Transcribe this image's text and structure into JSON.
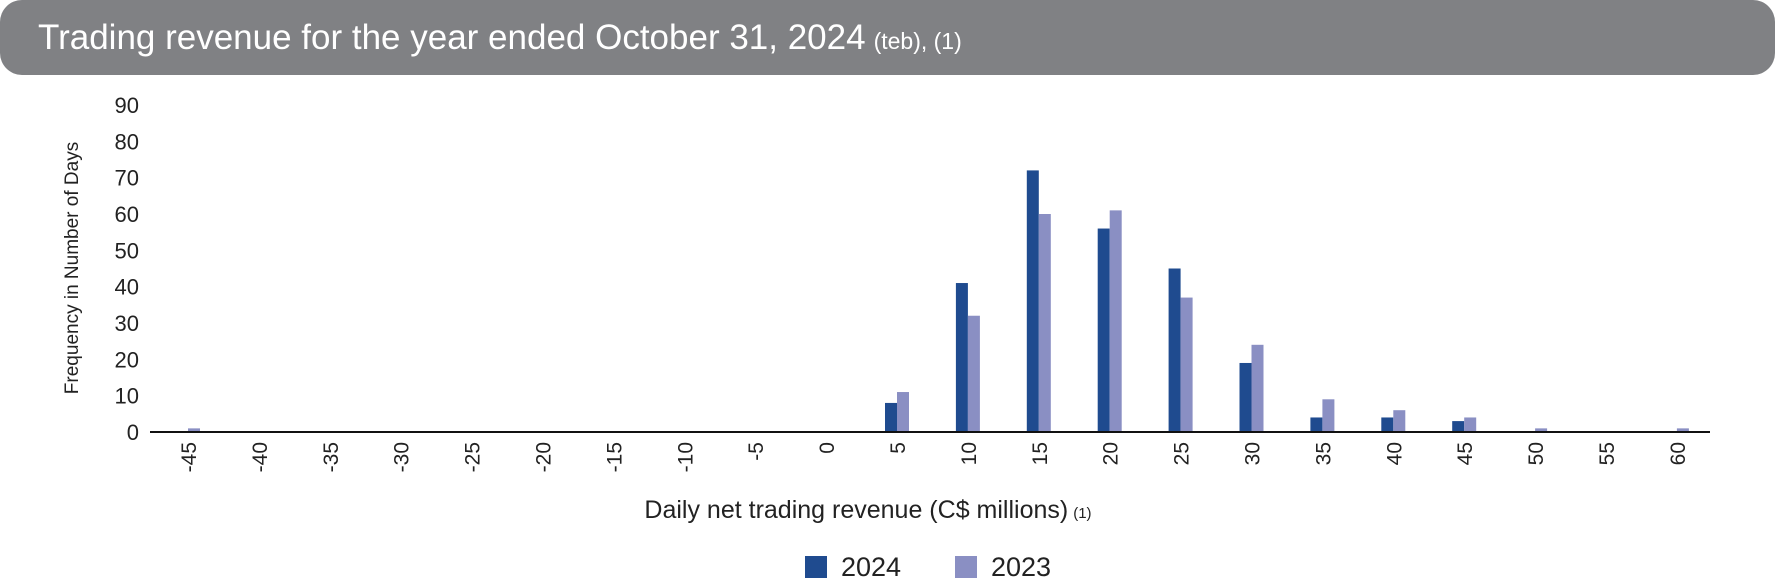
{
  "header": {
    "title": "Trading revenue for the year ended October 31, 2024",
    "title_note": "(teb), (1)"
  },
  "chart_data": {
    "type": "bar",
    "categories": [
      "-45",
      "-40",
      "-35",
      "-30",
      "-25",
      "-20",
      "-15",
      "-10",
      "-5",
      "0",
      "5",
      "10",
      "15",
      "20",
      "25",
      "30",
      "35",
      "40",
      "45",
      "50",
      "55",
      "60"
    ],
    "series": [
      {
        "name": "2024",
        "color": "#1f4b8f",
        "values": [
          0,
          0,
          0,
          0,
          0,
          0,
          0,
          0,
          0,
          0,
          8,
          41,
          72,
          56,
          45,
          19,
          4,
          4,
          3,
          0,
          0,
          0
        ]
      },
      {
        "name": "2023",
        "color": "#8a8fc3",
        "values": [
          1,
          0,
          0,
          0,
          0,
          0,
          0,
          0,
          0,
          0,
          11,
          32,
          60,
          61,
          37,
          24,
          9,
          6,
          4,
          1,
          0,
          1
        ]
      }
    ],
    "xlabel": "Daily net trading revenue (C$ millions)",
    "xlabel_note": "(1)",
    "ylabel": "Frequency in Number of Days",
    "ylim": [
      0,
      90
    ],
    "yticks": [
      "0",
      "10",
      "20",
      "30",
      "40",
      "50",
      "60",
      "70",
      "80",
      "90"
    ],
    "grid": false,
    "legend": "bottom-center"
  }
}
